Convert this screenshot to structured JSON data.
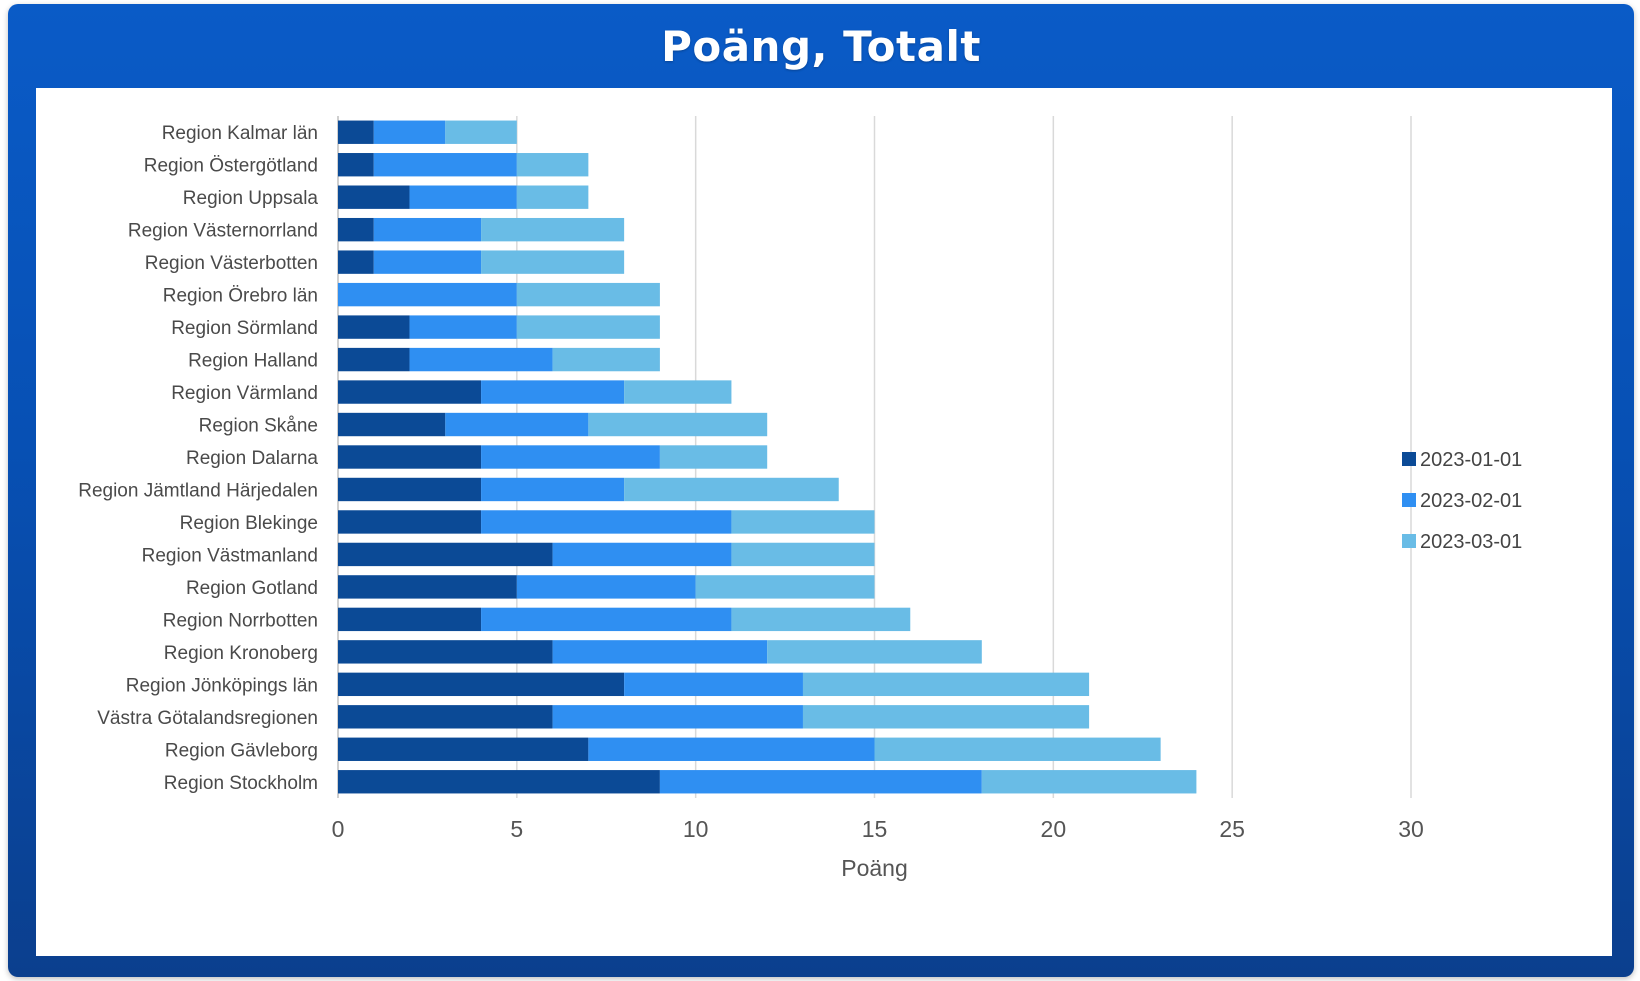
{
  "chart_data": {
    "type": "bar",
    "orientation": "horizontal",
    "stacked": true,
    "title": "Poäng, Totalt",
    "xlabel": "Poäng",
    "ylabel": "",
    "xlim": [
      0,
      30
    ],
    "xticks": [
      0,
      5,
      10,
      15,
      20,
      25,
      30
    ],
    "grid": "vertical",
    "legend_position": "right",
    "categories": [
      "Region Kalmar län",
      "Region Östergötland",
      "Region Uppsala",
      "Region Västernorrland",
      "Region Västerbotten",
      "Region Örebro län",
      "Region Sörmland",
      "Region Halland",
      "Region Värmland",
      "Region Skåne",
      "Region Dalarna",
      "Region Jämtland Härjedalen",
      "Region Blekinge",
      "Region Västmanland",
      "Region Gotland",
      "Region Norrbotten",
      "Region Kronoberg",
      "Region Jönköpings län",
      "Västra Götalandsregionen",
      "Region Gävleborg",
      "Region Stockholm"
    ],
    "series": [
      {
        "name": "2023-01-01",
        "color": "#0b4a96",
        "values": [
          1,
          1,
          2,
          1,
          1,
          0,
          2,
          2,
          4,
          3,
          4,
          4,
          4,
          6,
          5,
          4,
          6,
          8,
          6,
          7,
          9
        ]
      },
      {
        "name": "2023-02-01",
        "color": "#2f8ff2",
        "values": [
          2,
          4,
          3,
          3,
          3,
          5,
          3,
          4,
          4,
          4,
          5,
          4,
          7,
          5,
          5,
          7,
          6,
          5,
          7,
          8,
          9
        ]
      },
      {
        "name": "2023-03-01",
        "color": "#69bce6",
        "values": [
          2,
          2,
          2,
          4,
          4,
          4,
          4,
          3,
          3,
          5,
          3,
          6,
          4,
          4,
          5,
          5,
          6,
          8,
          8,
          8,
          6
        ]
      }
    ]
  }
}
